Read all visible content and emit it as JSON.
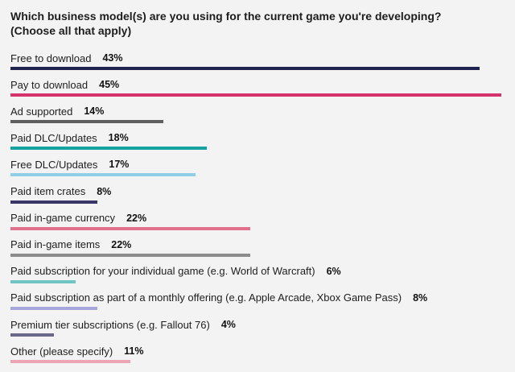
{
  "chart_data": {
    "type": "bar",
    "orientation": "horizontal",
    "title": "Which business model(s) are you using for the current game you're developing?",
    "subtitle": "(Choose all that apply)",
    "xlabel": "",
    "ylabel": "",
    "xlim": [
      0,
      45
    ],
    "grid": false,
    "categories": [
      "Free to download",
      "Pay to download",
      "Ad supported",
      "Paid DLC/Updates",
      "Free DLC/Updates",
      "Paid item crates",
      "Paid in-game currency",
      "Paid in-game items",
      "Paid subscription for your individual game (e.g. World of Warcraft)",
      "Paid subscription as part of a monthly offering (e.g. Apple Arcade, Xbox Game Pass)",
      "Premium tier subscriptions (e.g. Fallout 76)",
      "Other (please specify)"
    ],
    "values": [
      43,
      45,
      14,
      18,
      17,
      8,
      22,
      22,
      6,
      8,
      4,
      11
    ],
    "value_labels": [
      "43%",
      "45%",
      "14%",
      "18%",
      "17%",
      "8%",
      "22%",
      "22%",
      "6%",
      "8%",
      "4%",
      "11%"
    ],
    "colors": [
      "#1f2350",
      "#d6336c",
      "#5f5f5f",
      "#17a3a3",
      "#8fd0e6",
      "#3a3568",
      "#e0708c",
      "#8c8c8c",
      "#6fc4c4",
      "#a7a7dc",
      "#6a6a88",
      "#eda5b6"
    ]
  }
}
